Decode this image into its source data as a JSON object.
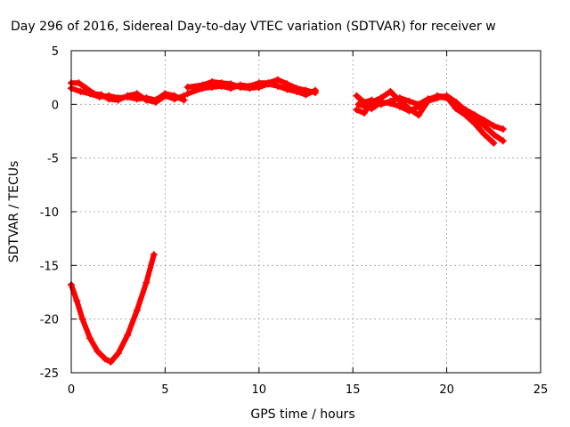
{
  "chart_data": {
    "type": "scatter",
    "title": "Day 296 of 2016, Sidereal Day-to-day VTEC variation (SDTVAR) for receiver w",
    "xlabel": "GPS time / hours",
    "ylabel": "SDTVAR / TECUs",
    "xlim": [
      0,
      25
    ],
    "ylim": [
      -25,
      5
    ],
    "xticks": [
      "0",
      "5",
      "10",
      "15",
      "20",
      "25"
    ],
    "yticks": [
      "5",
      "0",
      "-5",
      "-10",
      "-15",
      "-20",
      "-25"
    ],
    "grid": true,
    "marker": "+",
    "color": "#ff0000",
    "series": [
      {
        "x": [
          0.0,
          0.5,
          1.0,
          1.5,
          2.0,
          2.5,
          3.0,
          3.5,
          4.0,
          4.5,
          5.0,
          5.5,
          6.0
        ],
        "y": [
          1.5,
          1.2,
          1.0,
          0.7,
          0.8,
          0.6,
          0.7,
          0.5,
          0.6,
          0.4,
          1.0,
          0.8,
          0.4
        ]
      },
      {
        "x": [
          0.0,
          0.4,
          0.8,
          1.2,
          1.6,
          2.0,
          2.5,
          3.0,
          3.5,
          4.0,
          4.5,
          5.0,
          5.5,
          6.0
        ],
        "y": [
          2.0,
          2.0,
          1.5,
          1.0,
          0.9,
          0.5,
          0.4,
          0.8,
          1.0,
          0.4,
          0.2,
          0.8,
          0.5,
          0.8
        ]
      },
      {
        "x": [
          6.2,
          7.0,
          7.5,
          8.0,
          8.5,
          9.0,
          9.5,
          10.0,
          10.5,
          11.0,
          11.5,
          12.0,
          12.5,
          13.0
        ],
        "y": [
          1.0,
          1.5,
          1.6,
          1.7,
          1.5,
          1.8,
          1.7,
          2.0,
          2.0,
          2.3,
          1.9,
          1.5,
          1.3,
          1.1
        ]
      },
      {
        "x": [
          6.2,
          7.0,
          7.5,
          8.0,
          8.5,
          9.0,
          9.5,
          10.0,
          10.5,
          11.0,
          11.5,
          12.0,
          12.5,
          13.0
        ],
        "y": [
          1.6,
          1.8,
          2.1,
          2.0,
          1.9,
          1.6,
          1.5,
          1.6,
          1.9,
          1.7,
          1.4,
          1.2,
          0.9,
          1.3
        ]
      },
      {
        "x": [
          0.0,
          0.3,
          0.6,
          1.0,
          1.4,
          1.8,
          2.1,
          2.5,
          3.0,
          3.5,
          4.0,
          4.4
        ],
        "y": [
          -16.8,
          -18.3,
          -20.0,
          -21.8,
          -23.0,
          -23.7,
          -24.0,
          -23.2,
          -21.5,
          -19.2,
          -16.6,
          -14.0
        ]
      },
      {
        "x": [
          15.2,
          15.6,
          16.0,
          16.5,
          17.0,
          17.5,
          18.0,
          18.5,
          19.0,
          19.5,
          20.0,
          20.5,
          21.0,
          21.5,
          22.0,
          22.5,
          23.0
        ],
        "y": [
          0.8,
          0.2,
          0.4,
          0.0,
          0.3,
          0.6,
          0.3,
          0.0,
          0.5,
          0.7,
          0.6,
          0.0,
          -0.5,
          -1.0,
          -1.5,
          -2.0,
          -2.3
        ]
      },
      {
        "x": [
          15.2,
          15.6,
          16.0,
          16.5,
          17.0,
          17.5,
          18.0,
          18.5,
          19.0,
          19.5,
          20.0,
          20.5,
          21.0,
          21.5,
          22.0,
          22.5,
          23.0
        ],
        "y": [
          -0.5,
          -0.8,
          0.2,
          0.6,
          1.2,
          0.3,
          -0.4,
          -1.0,
          0.3,
          0.6,
          0.8,
          0.2,
          -0.6,
          -1.2,
          -2.0,
          -2.8,
          -3.4
        ]
      },
      {
        "x": [
          15.3,
          16.0,
          16.5,
          17.0,
          17.5,
          18.0,
          18.5,
          19.0,
          19.5,
          20.0,
          20.5,
          21.0,
          21.5,
          22.0,
          22.5
        ],
        "y": [
          0.0,
          -0.4,
          0.2,
          0.1,
          -0.2,
          -0.6,
          -0.2,
          0.4,
          0.8,
          0.7,
          -0.4,
          -1.0,
          -1.8,
          -2.8,
          -3.6
        ]
      }
    ]
  }
}
